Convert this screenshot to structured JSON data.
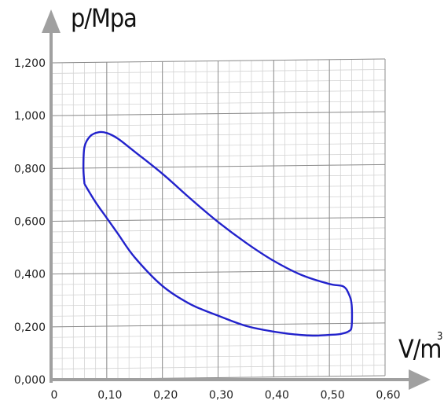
{
  "chart_data": {
    "type": "line",
    "title": "",
    "ylabel": "p/Mpa",
    "xlabel": "V/m",
    "xlabel_superscript": "3",
    "xlim": [
      0,
      0.6
    ],
    "ylim": [
      0,
      1.2
    ],
    "x_ticks": [
      "0",
      "0,10",
      "0,20",
      "0,30",
      "0,40",
      "0,50",
      "0,60"
    ],
    "y_ticks": [
      "0,000",
      "0,200",
      "0,400",
      "0,600",
      "0,800",
      "1,000",
      "1,200"
    ],
    "grid": true,
    "line_color": "#2222cc",
    "series": [
      {
        "closed": true,
        "x": [
          0.06,
          0.058,
          0.06,
          0.07,
          0.085,
          0.1,
          0.12,
          0.15,
          0.2,
          0.25,
          0.3,
          0.35,
          0.4,
          0.45,
          0.5,
          0.525,
          0.535,
          0.54,
          0.54,
          0.535,
          0.52,
          0.5,
          0.47,
          0.44,
          0.4,
          0.35,
          0.3,
          0.25,
          0.2,
          0.15,
          0.12,
          0.1,
          0.08,
          0.06
        ],
        "y": [
          0.74,
          0.8,
          0.88,
          0.92,
          0.935,
          0.932,
          0.91,
          0.86,
          0.775,
          0.68,
          0.59,
          0.51,
          0.44,
          0.385,
          0.35,
          0.34,
          0.31,
          0.27,
          0.19,
          0.17,
          0.16,
          0.157,
          0.155,
          0.16,
          0.172,
          0.195,
          0.235,
          0.28,
          0.35,
          0.46,
          0.55,
          0.61,
          0.67,
          0.74
        ]
      }
    ]
  }
}
